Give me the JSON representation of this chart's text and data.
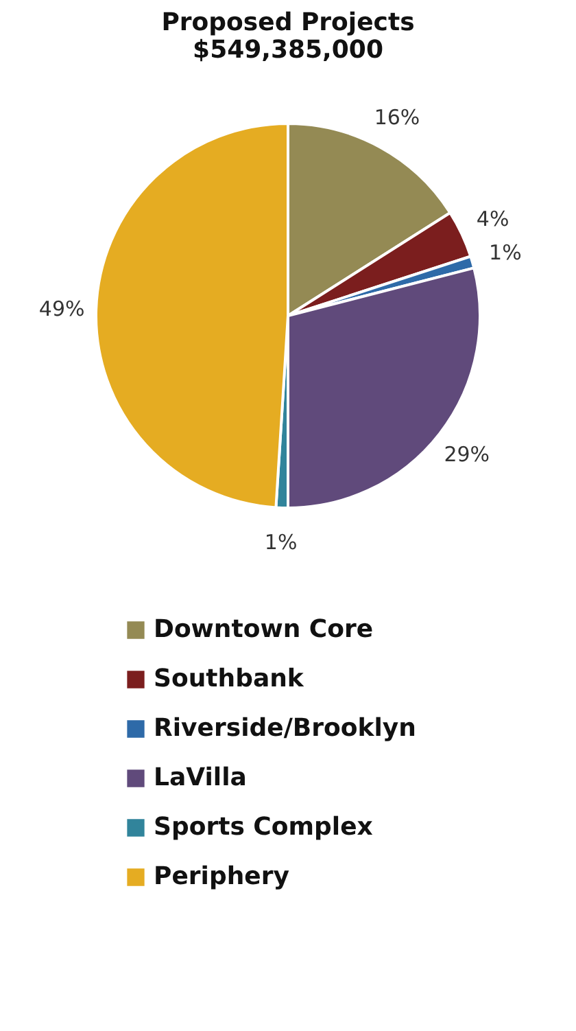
{
  "chart_data": {
    "type": "pie",
    "title": [
      "Proposed Projects",
      "$549,385,000"
    ],
    "categories": [
      "Downtown Core",
      "Southbank",
      "Riverside/Brooklyn",
      "LaVilla",
      "Sports Complex",
      "Periphery"
    ],
    "values": [
      16,
      4,
      1,
      29,
      1,
      49
    ],
    "colors": [
      "#948a54",
      "#7b1e1e",
      "#2e6aa8",
      "#604a7b",
      "#31849b",
      "#e5ac22"
    ],
    "value_labels": [
      "16%",
      "4%",
      "1%",
      "29%",
      "1%",
      "49%"
    ],
    "legend": "bottom"
  }
}
